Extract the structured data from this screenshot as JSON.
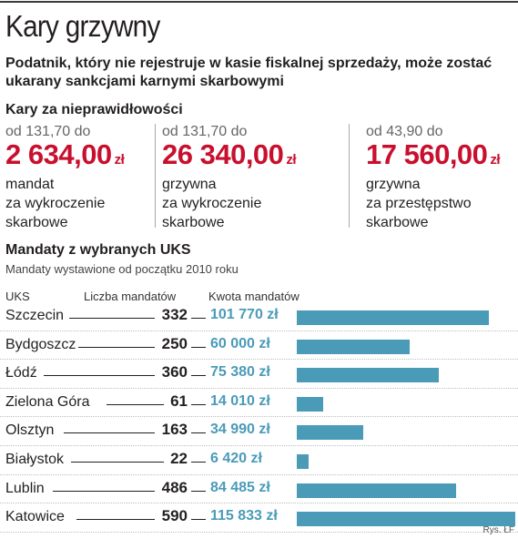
{
  "header": {
    "title": "Kary grzywny",
    "subtitle": "Podatnik, który nie rejestruje w kasie fiskalnej sprzedaży, może zostać ukarany sankcjami karnymi skarbowymi"
  },
  "fines_section": {
    "heading": "Kary za nieprawidłowości",
    "items": [
      {
        "from": "od 131,70 do",
        "amount": "2 634,00",
        "unit": "zł",
        "desc": [
          "mandat",
          "za wykroczenie",
          "skarbowe"
        ]
      },
      {
        "from": "od 131,70 do",
        "amount": "26 340,00",
        "unit": "zł",
        "desc": [
          "grzywna",
          "za wykroczenie",
          "skarbowe"
        ]
      },
      {
        "from": "od 43,90 do",
        "amount": "17 560,00",
        "unit": "zł",
        "desc": [
          "grzywna",
          "za przestępstwo",
          "skarbowe"
        ]
      }
    ]
  },
  "table_section": {
    "heading": "Mandaty z wybranych UKS",
    "note": "Mandaty wystawione od początku 2010 roku",
    "columns": [
      "UKS",
      "Liczba mandatów",
      "Kwota mandatów"
    ]
  },
  "chart_data": {
    "type": "bar",
    "orientation": "horizontal",
    "title": "Mandaty z wybranych UKS",
    "subtitle": "Mandaty wystawione od początku 2010 roku",
    "categories": [
      "Szczecin",
      "Bydgoszcz",
      "Łódź",
      "Zielona Góra",
      "Olsztyn",
      "Białystok",
      "Lublin",
      "Katowice"
    ],
    "counts": [
      332,
      250,
      360,
      61,
      163,
      22,
      486,
      590
    ],
    "values": [
      101770,
      60000,
      75380,
      14010,
      34990,
      6420,
      84485,
      115833
    ],
    "value_labels": [
      "101 770 zł",
      "60 000 zł",
      "75 380 zł",
      "14 010 zł",
      "34 990 zł",
      "6 420 zł",
      "84 485 zł",
      "115 833 zł"
    ],
    "colors": {
      "bar": "#4a9bb8",
      "accent": "#c8102e"
    }
  },
  "credit": "Rys. ŁF"
}
